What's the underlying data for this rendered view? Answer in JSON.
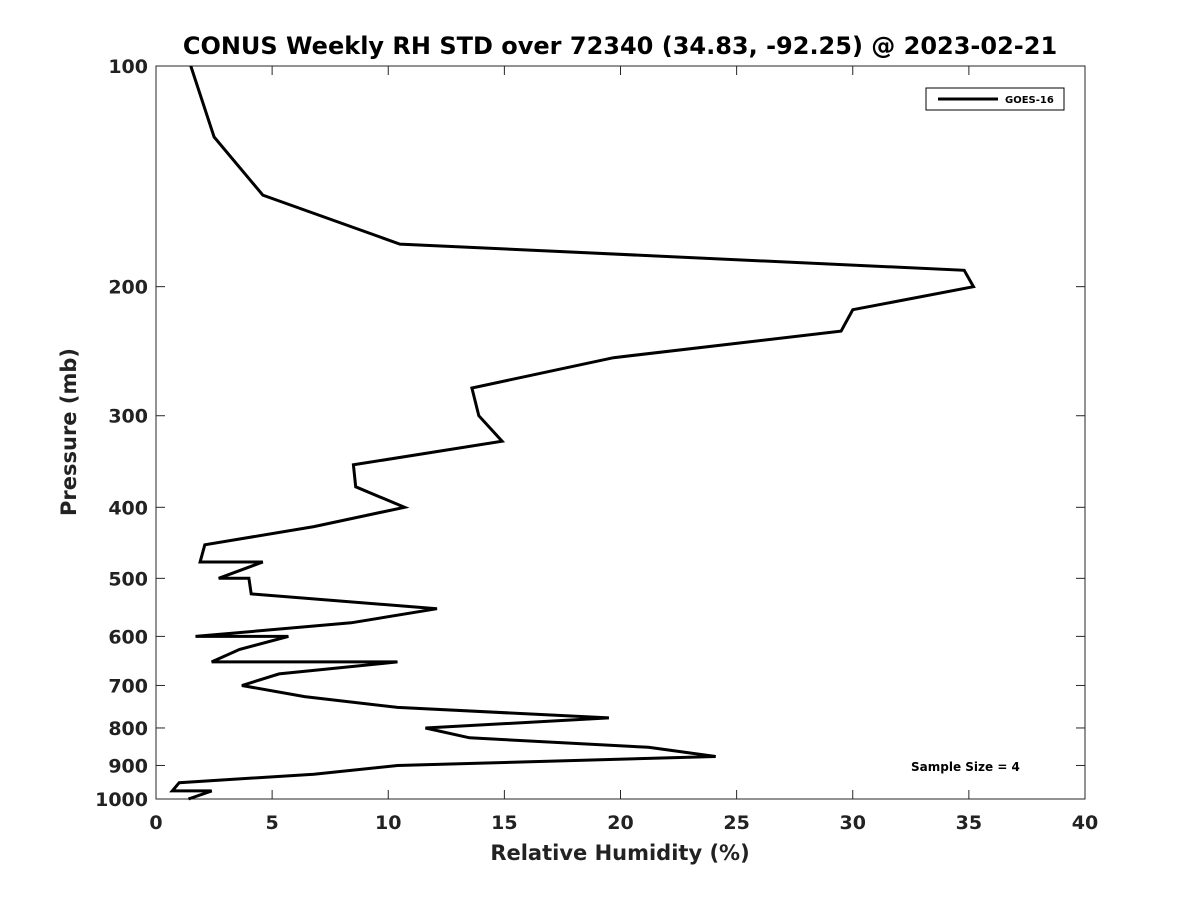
{
  "chart_data": {
    "type": "line",
    "title": "CONUS Weekly RH STD over 72340 (34.83, -92.25) @ 2023-02-21",
    "xlabel": "Relative Humidity (%)",
    "ylabel": "Pressure (mb)",
    "xlim": [
      0,
      40
    ],
    "ylim": [
      100,
      1000
    ],
    "y_scale": "log",
    "y_reversed": true,
    "x_ticks": [
      "0",
      "5",
      "10",
      "15",
      "20",
      "25",
      "30",
      "35",
      "40"
    ],
    "y_ticks": [
      "100",
      "200",
      "300",
      "400",
      "500",
      "600",
      "700",
      "800",
      "900",
      "1000"
    ],
    "grid": false,
    "legend_position": "top-right",
    "annotation": "Sample Size = 4",
    "series": [
      {
        "name": "GOES-16",
        "color": "#000000",
        "points": [
          [
            1.5,
            100
          ],
          [
            2.5,
            125
          ],
          [
            4.6,
            150
          ],
          [
            10.5,
            175
          ],
          [
            34.8,
            190
          ],
          [
            35.2,
            200
          ],
          [
            30.0,
            215
          ],
          [
            29.5,
            230
          ],
          [
            19.7,
            250
          ],
          [
            13.6,
            275
          ],
          [
            13.9,
            300
          ],
          [
            14.9,
            325
          ],
          [
            8.5,
            350
          ],
          [
            8.6,
            375
          ],
          [
            10.7,
            400
          ],
          [
            6.8,
            425
          ],
          [
            2.1,
            450
          ],
          [
            1.9,
            475
          ],
          [
            4.6,
            475
          ],
          [
            2.7,
            500
          ],
          [
            4.0,
            500
          ],
          [
            4.1,
            525
          ],
          [
            12.1,
            550
          ],
          [
            8.4,
            575
          ],
          [
            1.7,
            600
          ],
          [
            5.7,
            600
          ],
          [
            3.6,
            625
          ],
          [
            2.4,
            650
          ],
          [
            10.4,
            650
          ],
          [
            5.3,
            675
          ],
          [
            3.7,
            700
          ],
          [
            6.4,
            725
          ],
          [
            10.4,
            750
          ],
          [
            19.5,
            775
          ],
          [
            11.6,
            800
          ],
          [
            13.5,
            825
          ],
          [
            21.2,
            850
          ],
          [
            24.1,
            875
          ],
          [
            10.4,
            900
          ],
          [
            6.8,
            925
          ],
          [
            1.0,
            950
          ],
          [
            0.7,
            975
          ],
          [
            2.4,
            975
          ],
          [
            1.4,
            1000
          ]
        ]
      }
    ]
  }
}
